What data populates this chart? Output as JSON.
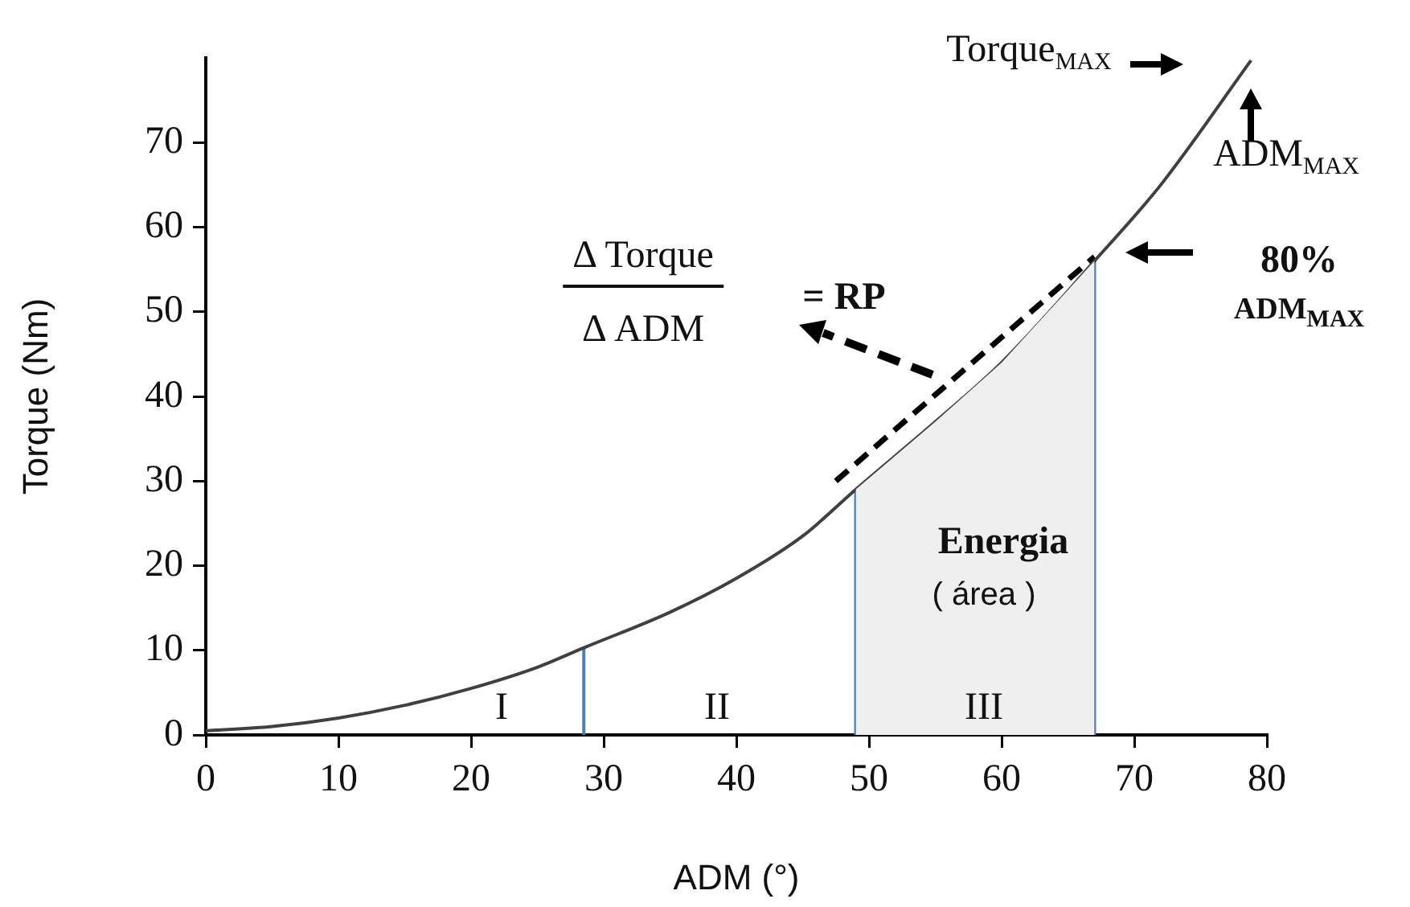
{
  "chart_data": {
    "type": "line",
    "xlabel": "ADM (°)",
    "ylabel": "Torque (Nm)",
    "xlim": [
      0,
      80
    ],
    "xticks": [
      0,
      10,
      20,
      30,
      40,
      50,
      60,
      70,
      80
    ],
    "ylim": [
      0,
      80
    ],
    "yticks": [
      0,
      10,
      20,
      30,
      40,
      50,
      60,
      70
    ],
    "grid": false,
    "legend": false,
    "marker": "none",
    "series": [
      {
        "type": "area",
        "color": "#efefef",
        "x": [
          49,
          55,
          60,
          67
        ],
        "values": [
          29,
          37,
          44,
          56
        ]
      },
      {
        "type": "line",
        "color": "#404040",
        "line_style": "solid",
        "x": [
          0,
          5,
          10,
          15,
          20,
          25,
          28.5,
          35,
          40,
          45,
          49,
          55,
          60,
          67,
          72,
          78.8
        ],
        "values": [
          0.5,
          1,
          2,
          3.5,
          5.5,
          8,
          10.3,
          14.5,
          18.5,
          23.5,
          29,
          37,
          44,
          56,
          65,
          79.7
        ]
      },
      {
        "type": "line",
        "color": "#000000",
        "line_style": "dashed",
        "x": [
          47.5,
          67
        ],
        "values": [
          30,
          56.5
        ]
      },
      {
        "type": "line",
        "color": "#4a80bf",
        "line_style": "solid",
        "x": [
          28.5,
          28.5
        ],
        "values": [
          0,
          10.3
        ]
      },
      {
        "type": "line",
        "color": "#4a80bf",
        "line_style": "solid",
        "x": [
          49,
          49
        ],
        "values": [
          0,
          29
        ]
      },
      {
        "type": "line",
        "color": "#4a80bf",
        "line_style": "solid",
        "x": [
          67,
          67
        ],
        "values": [
          0,
          56
        ]
      }
    ],
    "annotations": [
      "Torque$_{MAX}$",
      "ADM$_{MAX}$",
      "80%",
      "ADM$_{MAX}$",
      "Δ Torque",
      "Δ ADM",
      "= RP",
      "Energia",
      "( área )",
      "I",
      "II",
      "III"
    ]
  }
}
